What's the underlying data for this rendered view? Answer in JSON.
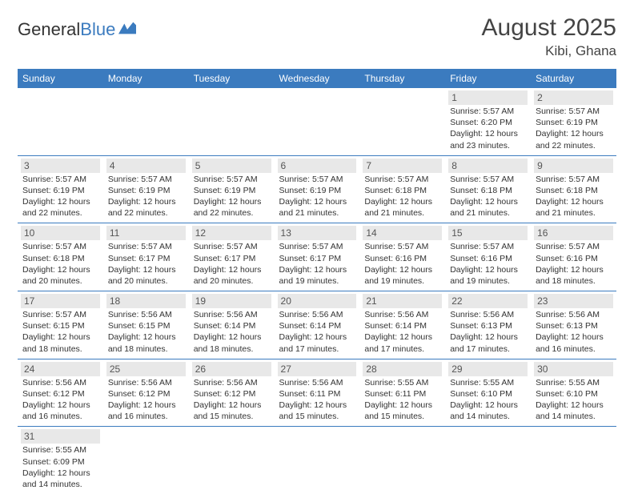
{
  "logo": {
    "text1": "General",
    "text2": "Blue"
  },
  "title": "August 2025",
  "location": "Kibi, Ghana",
  "colors": {
    "header_bg": "#3b7bbf",
    "header_fg": "#ffffff",
    "daynum_bg": "#e8e8e8",
    "border": "#3b7bbf",
    "text": "#333333"
  },
  "day_headers": [
    "Sunday",
    "Monday",
    "Tuesday",
    "Wednesday",
    "Thursday",
    "Friday",
    "Saturday"
  ],
  "weeks": [
    [
      null,
      null,
      null,
      null,
      null,
      {
        "n": "1",
        "sr": "5:57 AM",
        "ss": "6:20 PM",
        "dl": "12 hours and 23 minutes."
      },
      {
        "n": "2",
        "sr": "5:57 AM",
        "ss": "6:19 PM",
        "dl": "12 hours and 22 minutes."
      }
    ],
    [
      {
        "n": "3",
        "sr": "5:57 AM",
        "ss": "6:19 PM",
        "dl": "12 hours and 22 minutes."
      },
      {
        "n": "4",
        "sr": "5:57 AM",
        "ss": "6:19 PM",
        "dl": "12 hours and 22 minutes."
      },
      {
        "n": "5",
        "sr": "5:57 AM",
        "ss": "6:19 PM",
        "dl": "12 hours and 22 minutes."
      },
      {
        "n": "6",
        "sr": "5:57 AM",
        "ss": "6:19 PM",
        "dl": "12 hours and 21 minutes."
      },
      {
        "n": "7",
        "sr": "5:57 AM",
        "ss": "6:18 PM",
        "dl": "12 hours and 21 minutes."
      },
      {
        "n": "8",
        "sr": "5:57 AM",
        "ss": "6:18 PM",
        "dl": "12 hours and 21 minutes."
      },
      {
        "n": "9",
        "sr": "5:57 AM",
        "ss": "6:18 PM",
        "dl": "12 hours and 21 minutes."
      }
    ],
    [
      {
        "n": "10",
        "sr": "5:57 AM",
        "ss": "6:18 PM",
        "dl": "12 hours and 20 minutes."
      },
      {
        "n": "11",
        "sr": "5:57 AM",
        "ss": "6:17 PM",
        "dl": "12 hours and 20 minutes."
      },
      {
        "n": "12",
        "sr": "5:57 AM",
        "ss": "6:17 PM",
        "dl": "12 hours and 20 minutes."
      },
      {
        "n": "13",
        "sr": "5:57 AM",
        "ss": "6:17 PM",
        "dl": "12 hours and 19 minutes."
      },
      {
        "n": "14",
        "sr": "5:57 AM",
        "ss": "6:16 PM",
        "dl": "12 hours and 19 minutes."
      },
      {
        "n": "15",
        "sr": "5:57 AM",
        "ss": "6:16 PM",
        "dl": "12 hours and 19 minutes."
      },
      {
        "n": "16",
        "sr": "5:57 AM",
        "ss": "6:16 PM",
        "dl": "12 hours and 18 minutes."
      }
    ],
    [
      {
        "n": "17",
        "sr": "5:57 AM",
        "ss": "6:15 PM",
        "dl": "12 hours and 18 minutes."
      },
      {
        "n": "18",
        "sr": "5:56 AM",
        "ss": "6:15 PM",
        "dl": "12 hours and 18 minutes."
      },
      {
        "n": "19",
        "sr": "5:56 AM",
        "ss": "6:14 PM",
        "dl": "12 hours and 18 minutes."
      },
      {
        "n": "20",
        "sr": "5:56 AM",
        "ss": "6:14 PM",
        "dl": "12 hours and 17 minutes."
      },
      {
        "n": "21",
        "sr": "5:56 AM",
        "ss": "6:14 PM",
        "dl": "12 hours and 17 minutes."
      },
      {
        "n": "22",
        "sr": "5:56 AM",
        "ss": "6:13 PM",
        "dl": "12 hours and 17 minutes."
      },
      {
        "n": "23",
        "sr": "5:56 AM",
        "ss": "6:13 PM",
        "dl": "12 hours and 16 minutes."
      }
    ],
    [
      {
        "n": "24",
        "sr": "5:56 AM",
        "ss": "6:12 PM",
        "dl": "12 hours and 16 minutes."
      },
      {
        "n": "25",
        "sr": "5:56 AM",
        "ss": "6:12 PM",
        "dl": "12 hours and 16 minutes."
      },
      {
        "n": "26",
        "sr": "5:56 AM",
        "ss": "6:12 PM",
        "dl": "12 hours and 15 minutes."
      },
      {
        "n": "27",
        "sr": "5:56 AM",
        "ss": "6:11 PM",
        "dl": "12 hours and 15 minutes."
      },
      {
        "n": "28",
        "sr": "5:55 AM",
        "ss": "6:11 PM",
        "dl": "12 hours and 15 minutes."
      },
      {
        "n": "29",
        "sr": "5:55 AM",
        "ss": "6:10 PM",
        "dl": "12 hours and 14 minutes."
      },
      {
        "n": "30",
        "sr": "5:55 AM",
        "ss": "6:10 PM",
        "dl": "12 hours and 14 minutes."
      }
    ],
    [
      {
        "n": "31",
        "sr": "5:55 AM",
        "ss": "6:09 PM",
        "dl": "12 hours and 14 minutes."
      },
      null,
      null,
      null,
      null,
      null,
      null
    ]
  ],
  "labels": {
    "sunrise": "Sunrise: ",
    "sunset": "Sunset: ",
    "daylight": "Daylight: "
  }
}
